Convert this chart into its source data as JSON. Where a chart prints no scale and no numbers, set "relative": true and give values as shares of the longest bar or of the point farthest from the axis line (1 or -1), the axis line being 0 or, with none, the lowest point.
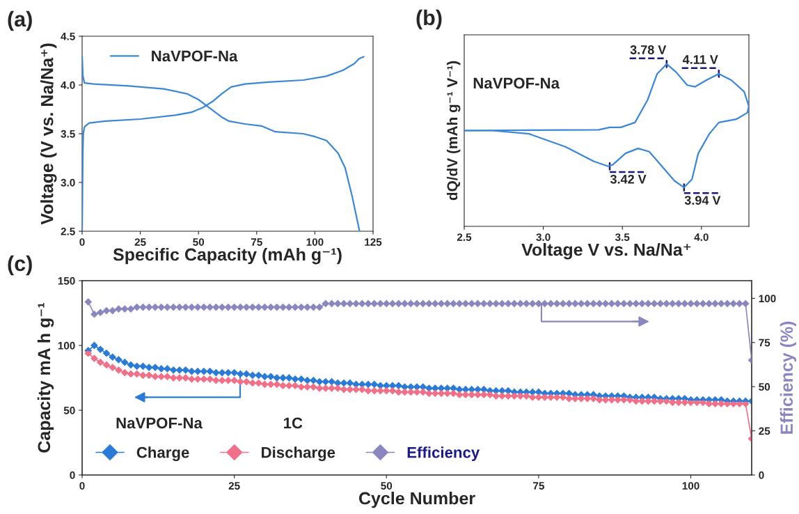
{
  "chart_data": [
    {
      "type": "line",
      "title": "(a)",
      "xlabel": "Specific Capacity (mAh g⁻¹)",
      "ylabel": "Voltage (V vs. Na/Na⁺)",
      "xlim": [
        0,
        125
      ],
      "ylim": [
        2.5,
        4.5
      ],
      "xticks": [
        0,
        25,
        50,
        75,
        100,
        125
      ],
      "yticks": [
        2.5,
        {
          "value": 3.0,
          "label": "3.0"
        },
        3.5,
        {
          "value": 4.0,
          "label": "4.0"
        },
        4.5
      ],
      "grid": false,
      "legend": "top left",
      "marker": "none",
      "line_style": "solid",
      "series": [
        {
          "name": "NaVPOF-Na",
          "color": "#3a87d8",
          "x": [
            0,
            0.3,
            0.5,
            1,
            3,
            10,
            25,
            40,
            47,
            52,
            56,
            60,
            64,
            70,
            80,
            95,
            105,
            112,
            117,
            119,
            121
          ],
          "values": [
            2.5,
            3.3,
            3.5,
            3.57,
            3.61,
            3.63,
            3.65,
            3.69,
            3.72,
            3.77,
            3.83,
            3.91,
            3.98,
            4.01,
            4.03,
            4.05,
            4.09,
            4.15,
            4.22,
            4.27,
            4.29
          ]
        },
        {
          "color": "#3a87d8",
          "x": [
            0,
            0.3,
            1,
            5,
            20,
            35,
            45,
            50,
            55,
            60,
            63,
            70,
            77,
            83,
            95,
            100,
            105,
            110,
            113,
            116,
            119.2
          ],
          "values": [
            4.3,
            4.1,
            4.02,
            4.01,
            3.99,
            3.96,
            3.91,
            3.85,
            3.76,
            3.67,
            3.63,
            3.6,
            3.58,
            3.52,
            3.5,
            3.47,
            3.43,
            3.3,
            3.15,
            2.86,
            2.5
          ]
        }
      ]
    },
    {
      "type": "line",
      "title": "(b)",
      "xlabel": "Voltage V vs. Na/Na⁺",
      "ylabel": "dQ/dV (mAh g⁻¹ V⁻¹)",
      "relative": true,
      "xlim": [
        2.5,
        4.3
      ],
      "xticks": [
        2.5,
        {
          "value": 3.0,
          "label": "3.0"
        },
        3.5,
        {
          "value": 4.0,
          "label": "4.0"
        }
      ],
      "grid": false,
      "legend": false,
      "marker": "none",
      "line_style": "solid",
      "annotations": [
        "NaVPOF-Na",
        {
          "text": "3.78 V",
          "x": 3.78,
          "y": 1.0
        },
        {
          "text": "4.11 V",
          "x": 4.11,
          "y": 0.94
        },
        {
          "text": "3.42 V",
          "x": 3.42,
          "y": 0.37
        },
        {
          "text": "3.94 V",
          "x": 3.89,
          "y": 0.24
        }
      ],
      "series": [
        {
          "color": "#3a87d8",
          "x": [
            2.5,
            3.35,
            3.42,
            3.49,
            3.58,
            3.66,
            3.72,
            3.78,
            3.84,
            3.91,
            3.96,
            4.03,
            4.11,
            4.19,
            4.27,
            4.3
          ],
          "values": [
            0.59,
            0.595,
            0.61,
            0.61,
            0.64,
            0.78,
            0.94,
            1.0,
            0.95,
            0.87,
            0.86,
            0.9,
            0.94,
            0.9,
            0.83,
            0.74
          ]
        },
        {
          "color": "#3a87d8",
          "x": [
            4.3,
            4.29,
            4.22,
            4.11,
            4.05,
            3.98,
            3.94,
            3.89,
            3.83,
            3.75,
            3.67,
            3.6,
            3.52,
            3.44,
            3.41,
            3.32,
            3.14,
            2.91,
            2.68,
            2.5
          ],
          "values": [
            0.74,
            0.7,
            0.66,
            0.64,
            0.57,
            0.45,
            0.29,
            0.24,
            0.28,
            0.37,
            0.46,
            0.48,
            0.45,
            0.38,
            0.37,
            0.4,
            0.49,
            0.57,
            0.59,
            0.59
          ]
        }
      ]
    },
    {
      "type": "line",
      "title": "(c)",
      "xlabel": "Cycle Number",
      "ylabel": "Capacity mA h g⁻¹",
      "y2label": "Efficiency (%)",
      "xlim": [
        0,
        110
      ],
      "ylim": [
        0,
        150
      ],
      "y2lim": [
        0,
        110
      ],
      "xticks": [
        0,
        25,
        50,
        75,
        100
      ],
      "yticks": [
        0,
        50,
        100,
        150
      ],
      "y2ticks": [
        0,
        25,
        50,
        75,
        100
      ],
      "grid": false,
      "legend": "bottom left",
      "marker": "diamond",
      "line_style": "solid",
      "annotations": [
        "NaVPOF-Na",
        "1C"
      ],
      "series": [
        {
          "name": "Charge",
          "color": "#2a7bd8",
          "x": [
            1,
            2,
            3,
            4,
            5,
            6,
            7,
            8,
            9,
            10,
            11,
            12,
            13,
            14,
            15,
            16,
            17,
            18,
            19,
            20,
            21,
            22,
            23,
            24,
            25,
            26,
            27,
            28,
            29,
            30,
            31,
            32,
            33,
            34,
            35,
            36,
            37,
            38,
            39,
            40,
            41,
            42,
            43,
            44,
            45,
            46,
            47,
            48,
            49,
            50,
            51,
            52,
            53,
            54,
            55,
            56,
            57,
            58,
            59,
            60,
            61,
            62,
            63,
            64,
            65,
            66,
            67,
            68,
            69,
            70,
            71,
            72,
            73,
            74,
            75,
            76,
            77,
            78,
            79,
            80,
            81,
            82,
            83,
            84,
            85,
            86,
            87,
            88,
            89,
            90,
            91,
            92,
            93,
            94,
            95,
            96,
            97,
            98,
            99,
            100,
            101,
            102,
            103,
            104,
            105,
            106,
            107,
            108,
            109,
            110
          ],
          "values": [
            96,
            100,
            97,
            94,
            91,
            89,
            87,
            85,
            84,
            84,
            83,
            83,
            82,
            82,
            81,
            81,
            81,
            80,
            80,
            80,
            80,
            79,
            79,
            79,
            79,
            78,
            78,
            77,
            77,
            76,
            76,
            75,
            75,
            75,
            74,
            74,
            73,
            73,
            72,
            72,
            72,
            71,
            71,
            71,
            70,
            70,
            70,
            70,
            69,
            69,
            69,
            69,
            68,
            68,
            68,
            68,
            67,
            67,
            67,
            67,
            67,
            66,
            66,
            66,
            66,
            66,
            65,
            65,
            65,
            65,
            64,
            64,
            64,
            64,
            64,
            63,
            63,
            63,
            63,
            63,
            62,
            62,
            62,
            62,
            61,
            61,
            61,
            61,
            61,
            60,
            60,
            60,
            60,
            60,
            59,
            59,
            59,
            59,
            59,
            58,
            58,
            58,
            58,
            58,
            58,
            57,
            57,
            57,
            57,
            57
          ]
        },
        {
          "name": "Discharge",
          "color": "#f07089",
          "x": [
            1,
            2,
            3,
            4,
            5,
            6,
            7,
            8,
            9,
            10,
            11,
            12,
            13,
            14,
            15,
            16,
            17,
            18,
            19,
            20,
            21,
            22,
            23,
            24,
            25,
            26,
            27,
            28,
            29,
            30,
            31,
            32,
            33,
            34,
            35,
            36,
            37,
            38,
            39,
            40,
            41,
            42,
            43,
            44,
            45,
            46,
            47,
            48,
            49,
            50,
            51,
            52,
            53,
            54,
            55,
            56,
            57,
            58,
            59,
            60,
            61,
            62,
            63,
            64,
            65,
            66,
            67,
            68,
            69,
            70,
            71,
            72,
            73,
            74,
            75,
            76,
            77,
            78,
            79,
            80,
            81,
            82,
            83,
            84,
            85,
            86,
            87,
            88,
            89,
            90,
            91,
            92,
            93,
            94,
            95,
            96,
            97,
            98,
            99,
            100,
            101,
            102,
            103,
            104,
            105,
            106,
            107,
            108,
            109,
            110
          ],
          "values": [
            94,
            90,
            87,
            85,
            83,
            81,
            79,
            78,
            78,
            77,
            77,
            76,
            76,
            76,
            75,
            75,
            75,
            74,
            74,
            74,
            74,
            73,
            73,
            73,
            73,
            72,
            72,
            71,
            71,
            70,
            70,
            70,
            69,
            69,
            69,
            68,
            68,
            68,
            67,
            67,
            67,
            67,
            66,
            66,
            66,
            66,
            65,
            65,
            65,
            65,
            65,
            64,
            64,
            64,
            64,
            64,
            63,
            63,
            63,
            63,
            63,
            62,
            62,
            62,
            62,
            62,
            62,
            61,
            61,
            61,
            61,
            61,
            61,
            60,
            60,
            60,
            60,
            60,
            60,
            59,
            59,
            59,
            59,
            59,
            58,
            58,
            58,
            58,
            58,
            58,
            57,
            57,
            57,
            57,
            57,
            57,
            56,
            56,
            56,
            56,
            56,
            56,
            55,
            55,
            55,
            55,
            55,
            55,
            55,
            28
          ]
        },
        {
          "name": "Efficiency",
          "color": "#8b86c0",
          "axis": "y2",
          "x": [
            1,
            2,
            3,
            4,
            5,
            6,
            7,
            8,
            9,
            10,
            11,
            12,
            13,
            14,
            15,
            16,
            17,
            18,
            19,
            20,
            21,
            22,
            23,
            24,
            25,
            26,
            27,
            28,
            29,
            30,
            31,
            32,
            33,
            34,
            35,
            36,
            37,
            38,
            39,
            40,
            41,
            42,
            43,
            44,
            45,
            46,
            47,
            48,
            49,
            50,
            51,
            52,
            53,
            54,
            55,
            56,
            57,
            58,
            59,
            60,
            61,
            62,
            63,
            64,
            65,
            66,
            67,
            68,
            69,
            70,
            71,
            72,
            73,
            74,
            75,
            76,
            77,
            78,
            79,
            80,
            81,
            82,
            83,
            84,
            85,
            86,
            87,
            88,
            89,
            90,
            91,
            92,
            93,
            94,
            95,
            96,
            97,
            98,
            99,
            100,
            101,
            102,
            103,
            104,
            105,
            106,
            107,
            108,
            109,
            110
          ],
          "values": [
            98,
            91,
            92,
            93,
            93,
            94,
            94,
            94,
            95,
            95,
            95,
            95,
            95,
            95,
            95,
            95,
            95,
            95,
            95,
            95,
            95,
            95,
            95,
            95,
            95,
            95,
            95,
            95,
            95,
            95,
            95,
            95,
            95,
            95,
            95,
            95,
            95,
            95,
            95,
            97,
            97,
            97,
            97,
            97,
            97,
            97,
            97,
            97,
            97,
            97,
            97,
            97,
            97,
            97,
            97,
            97,
            97,
            97,
            97,
            97,
            97,
            97,
            97,
            97,
            97,
            97,
            97,
            97,
            97,
            97,
            97,
            97,
            97,
            97,
            97,
            97,
            97,
            97,
            97,
            97,
            97,
            97,
            97,
            97,
            97,
            97,
            97,
            97,
            97,
            97,
            97,
            97,
            97,
            97,
            97,
            97,
            97,
            97,
            97,
            97,
            97,
            97,
            97,
            97,
            97,
            97,
            97,
            97,
            97,
            65
          ]
        }
      ]
    }
  ]
}
